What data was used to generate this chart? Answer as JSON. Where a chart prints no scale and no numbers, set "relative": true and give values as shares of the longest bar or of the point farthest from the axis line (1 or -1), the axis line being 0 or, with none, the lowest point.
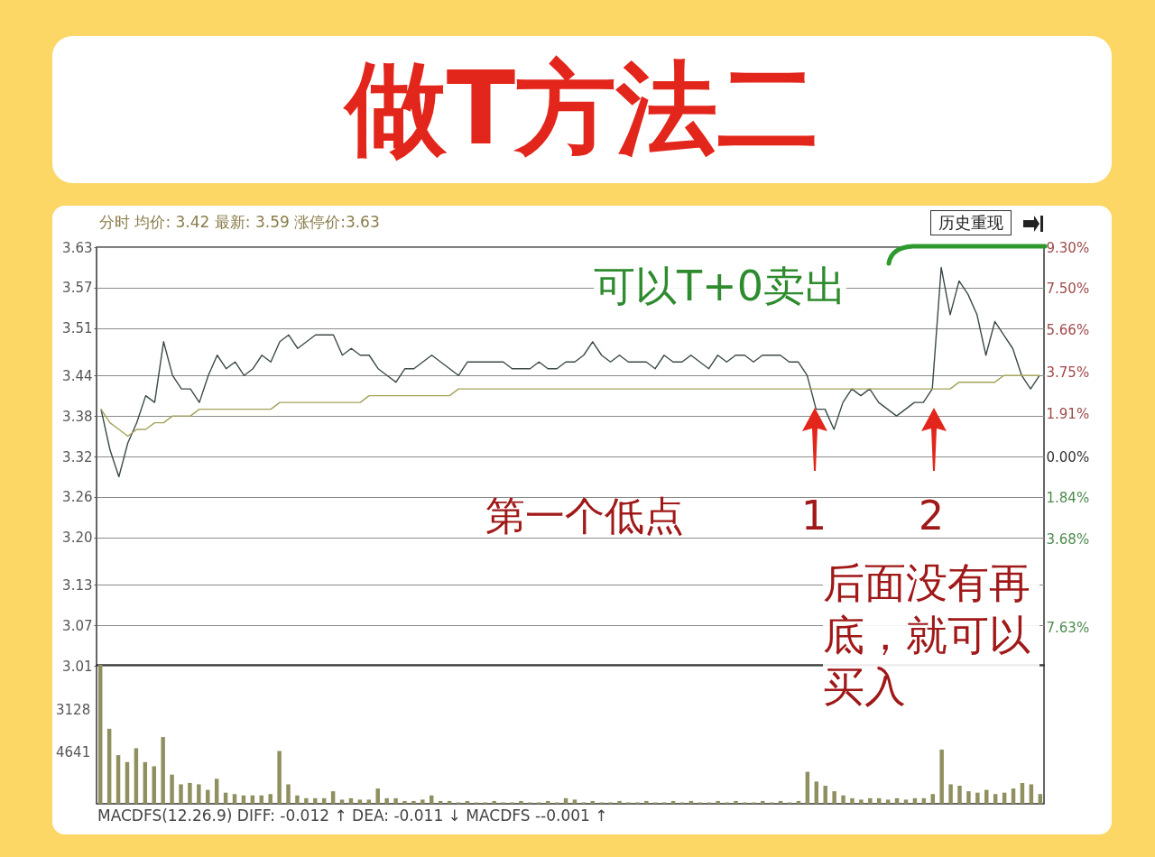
{
  "chart_data": [
    {
      "type": "line",
      "title": "做T方法二",
      "annotations": [
        "分时 均价: 3.42 最新: 3.59 涨停价:3.63",
        "历史重现",
        "可以T+0卖出",
        "第一个低点",
        "1",
        "2",
        "后面没有再底，就可以买入"
      ],
      "categories": [
        null,
        null,
        null,
        null,
        null,
        null,
        null,
        null,
        null,
        null,
        null,
        null,
        null,
        null,
        null,
        null,
        null,
        null,
        null,
        null,
        null,
        null,
        null,
        null,
        null,
        null,
        null,
        null,
        null,
        null,
        null,
        null,
        null,
        null,
        null,
        null,
        null,
        null,
        null,
        null,
        null,
        null,
        null,
        null,
        null,
        null,
        null,
        null,
        null,
        null,
        null,
        null,
        null,
        null,
        null,
        null,
        null,
        null,
        null,
        null,
        null,
        null,
        null,
        null,
        null,
        null,
        null,
        null,
        null,
        null,
        null,
        null,
        null,
        null,
        null,
        null,
        null,
        null,
        null,
        null,
        null,
        null,
        null,
        null,
        null,
        null,
        null,
        null,
        null,
        null,
        null,
        null,
        null,
        null,
        null,
        null,
        null,
        null,
        null,
        null,
        null,
        null,
        null,
        null,
        null,
        null
      ],
      "series": [
        {
          "color": "#3c4a4a",
          "values": [
            3.39,
            3.33,
            3.29,
            3.34,
            3.37,
            3.41,
            3.4,
            3.49,
            3.44,
            3.42,
            3.42,
            3.4,
            3.44,
            3.47,
            3.45,
            3.46,
            3.44,
            3.45,
            3.47,
            3.46,
            3.49,
            3.5,
            3.48,
            3.49,
            3.5,
            3.5,
            3.5,
            3.47,
            3.48,
            3.47,
            3.47,
            3.45,
            3.44,
            3.43,
            3.45,
            3.45,
            3.46,
            3.47,
            3.46,
            3.45,
            3.44,
            3.46,
            3.46,
            3.46,
            3.46,
            3.46,
            3.45,
            3.45,
            3.45,
            3.46,
            3.45,
            3.45,
            3.46,
            3.46,
            3.47,
            3.49,
            3.47,
            3.46,
            3.47,
            3.46,
            3.46,
            3.46,
            3.45,
            3.47,
            3.46,
            3.46,
            3.47,
            3.46,
            3.45,
            3.47,
            3.46,
            3.47,
            3.47,
            3.46,
            3.47,
            3.47,
            3.47,
            3.46,
            3.46,
            3.44,
            3.39,
            3.39,
            3.36,
            3.4,
            3.42,
            3.41,
            3.42,
            3.4,
            3.39,
            3.38,
            3.39,
            3.4,
            3.4,
            3.42,
            3.6,
            3.53,
            3.58,
            3.56,
            3.53,
            3.47,
            3.52,
            3.5,
            3.48,
            3.44,
            3.42,
            3.44
          ]
        },
        {
          "color": "#a5a35a",
          "values": [
            3.39,
            3.37,
            3.36,
            3.35,
            3.36,
            3.36,
            3.37,
            3.37,
            3.38,
            3.38,
            3.38,
            3.39,
            3.39,
            3.39,
            3.39,
            3.39,
            3.39,
            3.39,
            3.39,
            3.39,
            3.4,
            3.4,
            3.4,
            3.4,
            3.4,
            3.4,
            3.4,
            3.4,
            3.4,
            3.4,
            3.41,
            3.41,
            3.41,
            3.41,
            3.41,
            3.41,
            3.41,
            3.41,
            3.41,
            3.41,
            3.42,
            3.42,
            3.42,
            3.42,
            3.42,
            3.42,
            3.42,
            3.42,
            3.42,
            3.42,
            3.42,
            3.42,
            3.42,
            3.42,
            3.42,
            3.42,
            3.42,
            3.42,
            3.42,
            3.42,
            3.42,
            3.42,
            3.42,
            3.42,
            3.42,
            3.42,
            3.42,
            3.42,
            3.42,
            3.42,
            3.42,
            3.42,
            3.42,
            3.42,
            3.42,
            3.42,
            3.42,
            3.42,
            3.42,
            3.42,
            3.42,
            3.42,
            3.42,
            3.42,
            3.42,
            3.42,
            3.42,
            3.42,
            3.42,
            3.42,
            3.42,
            3.42,
            3.42,
            3.42,
            3.42,
            3.42,
            3.43,
            3.43,
            3.43,
            3.43,
            3.43,
            3.44,
            3.44,
            3.44,
            3.44,
            3.44
          ]
        }
      ],
      "ylim": [
        3.01,
        3.63
      ],
      "yticks": [
        3.01,
        3.07,
        3.13,
        {
          "value": 3.2,
          "label": "3.20"
        },
        3.26,
        3.32,
        3.38,
        3.44,
        3.51,
        3.57,
        3.63
      ],
      "y2lim": [
        -9.34,
        9.34
      ],
      "y2ticks": [
        {
          "value": 9.3,
          "label": "9.30%"
        },
        {
          "value": 7.5,
          "label": "7.50%"
        },
        {
          "value": 5.66,
          "label": "5.66%"
        },
        {
          "value": 3.75,
          "label": "3.75%"
        },
        {
          "value": 1.91,
          "label": "1.91%"
        },
        {
          "value": 0,
          "label": "0.00%"
        },
        {
          "value": -1.84,
          "label": "1.84%"
        },
        {
          "value": -3.68,
          "label": "3.68%"
        },
        {
          "value": -7.63,
          "label": "7.63%"
        }
      ],
      "grid": "y",
      "tick_labels": "y"
    },
    {
      "type": "bar",
      "color": "#8f8f5f",
      "annotations": [
        "MACDFS(12.26.9) DIFF: -0.012 ↑ DEA: -0.011 ↓ MACDFS --0.001 ↑",
        "3128",
        "4641"
      ],
      "relative": true,
      "categories": [
        null,
        null,
        null,
        null,
        null,
        null,
        null,
        null,
        null,
        null,
        null,
        null,
        null,
        null,
        null,
        null,
        null,
        null,
        null,
        null,
        null,
        null,
        null,
        null,
        null,
        null,
        null,
        null,
        null,
        null,
        null,
        null,
        null,
        null,
        null,
        null,
        null,
        null,
        null,
        null,
        null,
        null,
        null,
        null,
        null,
        null,
        null,
        null,
        null,
        null,
        null,
        null,
        null,
        null,
        null,
        null,
        null,
        null,
        null,
        null,
        null,
        null,
        null,
        null,
        null,
        null,
        null,
        null,
        null,
        null,
        null,
        null,
        null,
        null,
        null,
        null,
        null,
        null,
        null,
        null,
        null,
        null,
        null,
        null,
        null,
        null,
        null,
        null,
        null,
        null,
        null,
        null,
        null,
        null,
        null,
        null,
        null,
        null,
        null,
        null,
        null,
        null,
        null,
        null,
        null,
        null
      ],
      "values": [
        1,
        0.54,
        0.35,
        0.3,
        0.4,
        0.3,
        0.27,
        0.48,
        0.21,
        0.14,
        0.15,
        0.14,
        0.1,
        0.18,
        0.08,
        0.07,
        0.06,
        0.06,
        0.06,
        0.07,
        0.38,
        0.14,
        0.06,
        0.04,
        0.04,
        0.04,
        0.09,
        0.03,
        0.04,
        0.03,
        0.03,
        0.11,
        0.04,
        0.04,
        0.02,
        0.02,
        0.03,
        0.06,
        0.02,
        0.02,
        0.01,
        0.02,
        0.01,
        0.01,
        0.02,
        0.01,
        0.01,
        0.02,
        0.01,
        0.01,
        0.02,
        0.01,
        0.04,
        0.03,
        0.01,
        0.02,
        0.01,
        0.01,
        0.02,
        0.01,
        0.01,
        0.02,
        0.01,
        0.01,
        0.02,
        0.01,
        0.02,
        0.01,
        0.01,
        0.02,
        0.01,
        0.02,
        0.01,
        0.01,
        0.02,
        0.01,
        0.02,
        0.01,
        0.02,
        0.23,
        0.16,
        0.13,
        0.09,
        0.06,
        0.04,
        0.03,
        0.04,
        0.04,
        0.03,
        0.04,
        0.03,
        0.04,
        0.04,
        0.07,
        0.39,
        0.14,
        0.13,
        0.09,
        0.08,
        0.1,
        0.07,
        0.08,
        0.11,
        0.15,
        0.14,
        0.07
      ],
      "tick_labels": false
    }
  ]
}
